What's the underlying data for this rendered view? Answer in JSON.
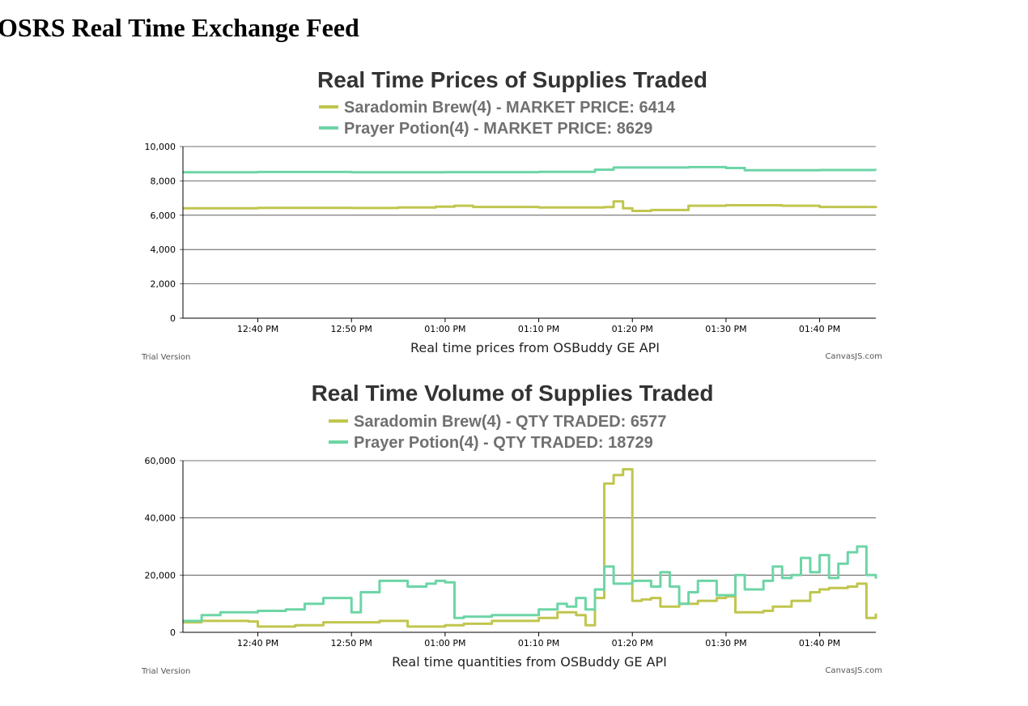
{
  "page": {
    "title": "OSRS Real Time Exchange Feed"
  },
  "charts": {
    "prices": {
      "title": "Real Time Prices of Supplies Traded",
      "legend": [
        {
          "text": "Saradomin Brew(4) - MARKET PRICE: 6414",
          "color": "#C0C64E"
        },
        {
          "text": "Prayer Potion(4) - MARKET PRICE: 8629",
          "color": "#6DD5A6"
        }
      ],
      "xlabel": "Real time prices from OSBuddy GE API",
      "trial": "Trial Version",
      "credit": "CanvasJS.com"
    },
    "volume": {
      "title": "Real Time Volume of Supplies Traded",
      "legend": [
        {
          "text": "Saradomin Brew(4) - QTY TRADED: 6577",
          "color": "#C0C64E"
        },
        {
          "text": "Prayer Potion(4) - QTY TRADED: 18729",
          "color": "#6DD5A6"
        }
      ],
      "xlabel": "Real time quantities from OSBuddy GE API",
      "trial": "Trial Version",
      "credit": "CanvasJS.com"
    }
  },
  "chart_data": [
    {
      "type": "line",
      "title": "Real Time Prices of Supplies Traded",
      "xlabel": "Real time prices from OSBuddy GE API",
      "ylabel": "",
      "x_unit": "time (minutes after 12:30 PM)",
      "xlim": [
        32,
        106
      ],
      "ylim": [
        0,
        10000
      ],
      "y_ticks": [
        0,
        2000,
        4000,
        6000,
        8000,
        10000
      ],
      "y_tick_labels": [
        "0",
        "2,000",
        "4,000",
        "6,000",
        "8,000",
        "10,000"
      ],
      "x_ticks": [
        40,
        50,
        60,
        70,
        80,
        90,
        100
      ],
      "x_tick_labels": [
        "12:40 PM",
        "12:50 PM",
        "01:00 PM",
        "01:10 PM",
        "01:20 PM",
        "01:30 PM",
        "01:40 PM"
      ],
      "grid": true,
      "legend_position": "top",
      "series": [
        {
          "name": "Saradomin Brew(4) - MARKET PRICE: 6414",
          "color": "#C0C64E",
          "x": [
            32,
            40,
            50,
            55,
            59,
            61,
            63,
            70,
            77,
            78,
            79,
            80,
            82,
            86,
            90,
            96,
            100,
            106
          ],
          "values": [
            6400,
            6430,
            6420,
            6450,
            6500,
            6550,
            6480,
            6450,
            6470,
            6800,
            6400,
            6250,
            6300,
            6550,
            6580,
            6550,
            6480,
            6414
          ]
        },
        {
          "name": "Prayer Potion(4) - MARKET PRICE: 8629",
          "color": "#6DD5A6",
          "x": [
            32,
            40,
            50,
            60,
            70,
            76,
            78,
            80,
            86,
            90,
            92,
            100,
            106
          ],
          "values": [
            8500,
            8520,
            8500,
            8510,
            8530,
            8650,
            8780,
            8780,
            8800,
            8750,
            8620,
            8630,
            8629
          ]
        }
      ]
    },
    {
      "type": "line",
      "title": "Real Time Volume of Supplies Traded",
      "xlabel": "Real time quantities from OSBuddy GE API",
      "ylabel": "",
      "x_unit": "time (minutes after 12:30 PM)",
      "xlim": [
        32,
        106
      ],
      "ylim": [
        0,
        60000
      ],
      "y_ticks": [
        0,
        20000,
        40000,
        60000
      ],
      "y_tick_labels": [
        "0",
        "20,000",
        "40,000",
        "60,000"
      ],
      "x_ticks": [
        40,
        50,
        60,
        70,
        80,
        90,
        100
      ],
      "x_tick_labels": [
        "12:40 PM",
        "12:50 PM",
        "01:00 PM",
        "01:10 PM",
        "01:20 PM",
        "01:30 PM",
        "01:40 PM"
      ],
      "grid": true,
      "legend_position": "top",
      "series": [
        {
          "name": "Saradomin Brew(4) - QTY TRADED: 6577",
          "color": "#C0C64E",
          "x": [
            32,
            34,
            39,
            40,
            44,
            47,
            53,
            56,
            59,
            60,
            62,
            65,
            70,
            72,
            74,
            75,
            76,
            77,
            78,
            79,
            80,
            81,
            82,
            83,
            85,
            87,
            89,
            90,
            91,
            94,
            95,
            97,
            99,
            100,
            101,
            103,
            104,
            105,
            106
          ],
          "values": [
            3500,
            4000,
            3800,
            2000,
            2500,
            3500,
            4000,
            2000,
            2000,
            2500,
            3000,
            4000,
            5000,
            7000,
            6000,
            2500,
            12000,
            52000,
            55000,
            57000,
            11000,
            11500,
            12000,
            9000,
            10000,
            11000,
            12000,
            12500,
            7000,
            7500,
            9000,
            11000,
            14000,
            15000,
            15500,
            16000,
            17000,
            5000,
            6577
          ]
        },
        {
          "name": "Prayer Potion(4) - QTY TRADED: 18729",
          "color": "#6DD5A6",
          "x": [
            32,
            34,
            36,
            40,
            43,
            45,
            47,
            50,
            51,
            53,
            56,
            58,
            59,
            60,
            61,
            62,
            65,
            70,
            72,
            73,
            74,
            75,
            76,
            77,
            78,
            80,
            82,
            83,
            84,
            85,
            86,
            87,
            89,
            91,
            92,
            94,
            95,
            96,
            97,
            98,
            99,
            100,
            101,
            102,
            103,
            104,
            105,
            106
          ],
          "values": [
            4000,
            6000,
            7000,
            7500,
            8000,
            10000,
            12000,
            7000,
            14000,
            18000,
            16000,
            17000,
            18000,
            17500,
            5000,
            5500,
            6000,
            8000,
            10000,
            9000,
            12000,
            8000,
            15000,
            23000,
            17000,
            18000,
            16000,
            21000,
            16000,
            10000,
            14000,
            18000,
            13000,
            20000,
            15000,
            18000,
            23000,
            19000,
            20000,
            26000,
            21000,
            27000,
            19000,
            24000,
            28000,
            30000,
            20000,
            18729
          ]
        }
      ]
    }
  ]
}
